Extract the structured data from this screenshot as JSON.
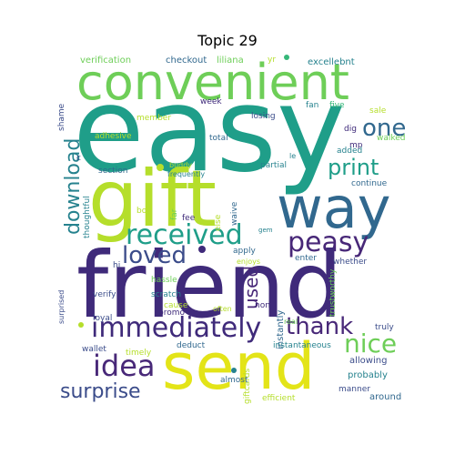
{
  "title": "Topic 29",
  "palette": {
    "dark_purple": "#3f2a7a",
    "indigo": "#3b4c8a",
    "blue": "#31688e",
    "teal": "#26828e",
    "green_teal": "#1f9e89",
    "green": "#35b779",
    "lime": "#6ece58",
    "yellow_green": "#b5de2b",
    "yellow": "#e3e418",
    "purple": "#482878"
  },
  "words": [
    "easy",
    "friend",
    "gift",
    "send",
    "convenient",
    "way",
    "peasy",
    "received",
    "immediately",
    "idea",
    "loved",
    "print",
    "one",
    "download",
    "thank",
    "nice",
    "surprise",
    "used",
    "verification",
    "checkout",
    "liliana",
    "yr",
    "excellebnt",
    "shame",
    "member",
    "week",
    "fan",
    "five",
    "sale",
    "adhesive",
    "total",
    "losing",
    "dig",
    "mp",
    "le",
    "added",
    "walked",
    "section",
    "partial",
    "buddy",
    "frequently",
    "thoughtful",
    "continue",
    "boy",
    "fee",
    "waive",
    "far",
    "else",
    "gem",
    "apply",
    "enjoys",
    "enter",
    "whether",
    "hi",
    "hassle",
    "verify",
    "scratch",
    "instantly",
    "trustworthy",
    "cause",
    "promo",
    "often",
    "non",
    "loyal",
    "wallet",
    "timely",
    "deduct",
    "real",
    "instantaneous",
    "truly",
    "allowing",
    "probably",
    "almost",
    "giftcards",
    "efficient",
    "manner",
    "around",
    "surprised",
    "c"
  ]
}
